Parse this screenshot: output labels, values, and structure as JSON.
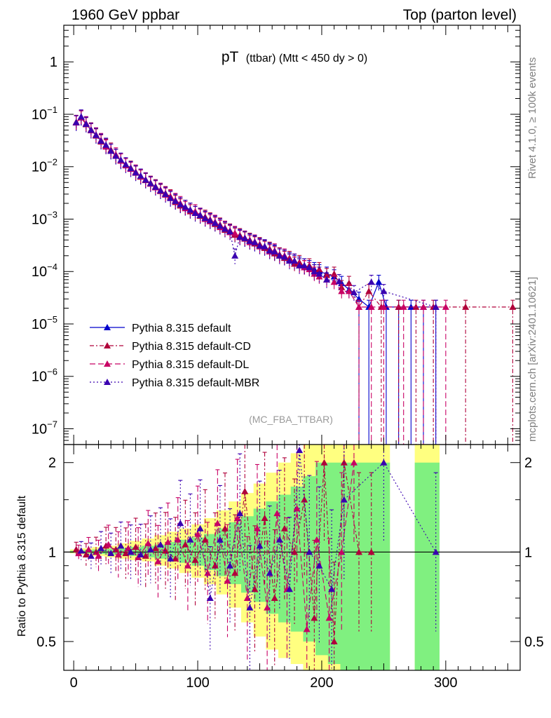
{
  "header": {
    "left": "1960 GeV ppbar",
    "right": "Top (parton level)"
  },
  "side_labels": {
    "rivet": "Rivet 4.1.0, ≥ 100k events",
    "mcplots": "mcplots.cern.ch [arXiv:2401.10621]"
  },
  "watermark": "(MC_FBA_TTBAR)",
  "chart_data": [
    {
      "type": "line",
      "panel": "main",
      "title_main": "pT",
      "title_sub": "(ttbar) (Mtt < 450 dy > 0)",
      "xlabel": "",
      "ylabel": "",
      "xlim": [
        -8,
        360
      ],
      "ylim": [
        5e-08,
        5
      ],
      "yscale": "log",
      "y_tick_labels": [
        "1",
        "10",
        "10",
        "10",
        "10",
        "10",
        "10",
        "10"
      ],
      "y_tick_exponents": [
        "",
        "−1",
        "−2",
        "−3",
        "−4",
        "−5",
        "−6",
        "−7"
      ],
      "x_tick_labels": [
        "0",
        "100",
        "200",
        "300"
      ],
      "legend": [
        "Pythia 8.315 default",
        "Pythia 8.315 default-CD",
        "Pythia 8.315 default-DL",
        "Pythia 8.315 default-MBR"
      ],
      "series": [
        {
          "name": "Pythia 8.315 default",
          "color": "#0000cc",
          "dash": "",
          "x": [
            2,
            6,
            10,
            14,
            18,
            22,
            26,
            30,
            34,
            38,
            42,
            46,
            50,
            54,
            58,
            62,
            66,
            70,
            74,
            78,
            82,
            86,
            90,
            94,
            98,
            102,
            106,
            110,
            114,
            118,
            122,
            126,
            130,
            134,
            138,
            142,
            146,
            150,
            154,
            158,
            162,
            166,
            170,
            174,
            178,
            182,
            186,
            190,
            194,
            198,
            204,
            210,
            216,
            222,
            230,
            238,
            246,
            252,
            262,
            272,
            282,
            292
          ],
          "y": [
            0.07,
            0.088,
            0.066,
            0.05,
            0.04,
            0.031,
            0.025,
            0.02,
            0.016,
            0.013,
            0.011,
            0.0092,
            0.0078,
            0.0066,
            0.0056,
            0.0048,
            0.0041,
            0.0035,
            0.003,
            0.0026,
            0.0022,
            0.0019,
            0.0017,
            0.0015,
            0.0013,
            0.0012,
            0.00105,
            0.00095,
            0.00085,
            0.00075,
            0.00066,
            0.00059,
            0.00052,
            0.00047,
            0.00043,
            0.00039,
            0.00035,
            0.00032,
            0.00029,
            0.00026,
            0.00023,
            0.00021,
            0.00019,
            0.00017,
            0.00015,
            0.00014,
            0.00013,
            0.00012,
            0.00011,
            0.0001,
            9e-05,
            8e-05,
            6e-05,
            4.5e-05,
            3e-05,
            2.1e-05,
            6.3e-05,
            2.1e-05,
            2.1e-05,
            2.1e-05,
            2.1e-05,
            2.1e-05
          ]
        },
        {
          "name": "Pythia 8.315 default-CD",
          "color": "#b0003a",
          "dash": "6,3,2,3",
          "x": [
            2,
            6,
            10,
            14,
            18,
            22,
            26,
            30,
            34,
            38,
            42,
            46,
            50,
            54,
            58,
            62,
            66,
            70,
            74,
            78,
            82,
            86,
            90,
            94,
            98,
            102,
            106,
            110,
            114,
            118,
            122,
            126,
            130,
            134,
            138,
            142,
            146,
            150,
            154,
            158,
            162,
            166,
            170,
            174,
            178,
            182,
            186,
            190,
            194,
            198,
            204,
            210,
            216,
            222,
            230,
            238,
            248,
            262,
            276,
            290,
            316,
            354
          ],
          "y": [
            0.071,
            0.086,
            0.064,
            0.051,
            0.039,
            0.03,
            0.025,
            0.021,
            0.016,
            0.013,
            0.011,
            0.0095,
            0.0076,
            0.0064,
            0.0055,
            0.0049,
            0.0042,
            0.0034,
            0.0031,
            0.0027,
            0.0021,
            0.0018,
            0.0017,
            0.0014,
            0.0013,
            0.00115,
            0.0011,
            0.00098,
            0.0008,
            0.00078,
            0.00062,
            0.0006,
            0.0005,
            0.00049,
            0.00042,
            0.0004,
            0.00034,
            0.00033,
            0.00028,
            0.00027,
            0.00022,
            0.00021,
            0.00018,
            0.00018,
            0.00014,
            0.00015,
            0.00012,
            0.00013,
            0.0001,
            0.00011,
            8.5e-05,
            9e-05,
            5e-05,
            6e-05,
            2.1e-05,
            4.2e-05,
            2.1e-05,
            2.1e-05,
            2.1e-05,
            2.1e-05,
            2.1e-05,
            2.1e-05
          ]
        },
        {
          "name": "Pythia 8.315 default-DL",
          "color": "#c80064",
          "dash": "8,4",
          "x": [
            2,
            6,
            10,
            14,
            18,
            22,
            26,
            30,
            34,
            38,
            42,
            46,
            50,
            54,
            58,
            62,
            66,
            70,
            74,
            78,
            82,
            86,
            90,
            94,
            98,
            102,
            106,
            110,
            114,
            118,
            122,
            126,
            130,
            134,
            138,
            142,
            146,
            150,
            154,
            158,
            162,
            166,
            170,
            174,
            178,
            182,
            186,
            190,
            194,
            198,
            204,
            210,
            216,
            222,
            230,
            240,
            250,
            266,
            282,
            300
          ],
          "y": [
            0.069,
            0.087,
            0.067,
            0.049,
            0.041,
            0.032,
            0.024,
            0.02,
            0.017,
            0.013,
            0.0105,
            0.009,
            0.008,
            0.0065,
            0.0057,
            0.0047,
            0.004,
            0.0036,
            0.0029,
            0.0026,
            0.0023,
            0.002,
            0.0016,
            0.0015,
            0.0014,
            0.0012,
            0.001,
            0.0009,
            0.00088,
            0.0007,
            0.00068,
            0.00056,
            0.00054,
            0.00045,
            0.00044,
            0.00036,
            0.00037,
            0.0003,
            0.0003,
            0.00024,
            0.00025,
            0.0002,
            0.0002,
            0.00016,
            0.00016,
            0.00013,
            0.00012,
            0.00011,
            9e-05,
            8e-05,
            7e-05,
            6.3e-05,
            4.2e-05,
            4.2e-05,
            2.1e-05,
            2.1e-05,
            2.1e-05,
            2.1e-05,
            2.1e-05,
            2.1e-05
          ]
        },
        {
          "name": "Pythia 8.315 default-MBR",
          "color": "#3a00b0",
          "dash": "2,3",
          "x": [
            2,
            6,
            10,
            14,
            18,
            22,
            26,
            30,
            34,
            38,
            42,
            46,
            50,
            54,
            58,
            62,
            66,
            70,
            74,
            78,
            82,
            86,
            90,
            94,
            98,
            102,
            106,
            110,
            114,
            118,
            122,
            126,
            130,
            134,
            138,
            142,
            146,
            150,
            154,
            158,
            162,
            166,
            170,
            174,
            178,
            182,
            186,
            190,
            194,
            198,
            204,
            214,
            226,
            240,
            250,
            292
          ],
          "y": [
            0.07,
            0.09,
            0.065,
            0.05,
            0.04,
            0.031,
            0.026,
            0.02,
            0.016,
            0.0135,
            0.011,
            0.0093,
            0.0077,
            0.0067,
            0.0056,
            0.0048,
            0.0041,
            0.0035,
            0.003,
            0.0025,
            0.0022,
            0.0019,
            0.0017,
            0.0015,
            0.0013,
            0.00118,
            0.00104,
            0.00094,
            0.00084,
            0.00074,
            0.00065,
            0.00058,
            0.0002,
            0.00046,
            0.00043,
            0.00038,
            0.00036,
            0.00031,
            0.0003,
            0.00025,
            0.00024,
            0.0002,
            0.00019,
            0.00016,
            0.00016,
            0.00013,
            0.00013,
            0.00012,
            0.0001,
            9e-05,
            7e-05,
            6.5e-05,
            4e-05,
            6.3e-05,
            4.2e-05,
            2.1e-05
          ]
        }
      ]
    },
    {
      "type": "line",
      "panel": "ratio",
      "xlabel": "",
      "ylabel": "Ratio to Pythia 8.315 default",
      "xlim": [
        -8,
        360
      ],
      "ylim": [
        0.4,
        2.3
      ],
      "yscale": "log",
      "y_tick_labels": [
        "0.5",
        "1",
        "2"
      ],
      "x_tick_labels": [
        "0",
        "100",
        "200",
        "300"
      ],
      "band_x": [
        2,
        10,
        20,
        30,
        40,
        50,
        60,
        70,
        80,
        90,
        100,
        110,
        120,
        130,
        140,
        150,
        160,
        170,
        180,
        190,
        200,
        210,
        220,
        230,
        240,
        250,
        280,
        290
      ],
      "band_yellow_lo": [
        0.99,
        0.98,
        0.97,
        0.96,
        0.95,
        0.94,
        0.93,
        0.9,
        0.88,
        0.85,
        0.82,
        0.78,
        0.72,
        0.65,
        0.58,
        0.52,
        0.47,
        0.44,
        0.42,
        0.4,
        0.4,
        0.4,
        0.4,
        0.4,
        0.4,
        0.4,
        0.4,
        0.4
      ],
      "band_yellow_hi": [
        1.02,
        1.03,
        1.04,
        1.05,
        1.07,
        1.09,
        1.11,
        1.14,
        1.17,
        1.2,
        1.24,
        1.3,
        1.38,
        1.48,
        1.58,
        1.7,
        1.85,
        2.0,
        2.15,
        2.3,
        2.3,
        2.3,
        2.3,
        2.3,
        2.3,
        2.3,
        2.3,
        2.3
      ],
      "band_green_lo": [
        0.995,
        0.99,
        0.985,
        0.98,
        0.975,
        0.97,
        0.96,
        0.95,
        0.94,
        0.92,
        0.9,
        0.87,
        0.83,
        0.78,
        0.73,
        0.68,
        0.62,
        0.58,
        0.54,
        0.5,
        0.45,
        0.42,
        0.4,
        0.4,
        0.4,
        0.4,
        0.4,
        0.4
      ],
      "band_green_hi": [
        1.01,
        1.015,
        1.02,
        1.025,
        1.03,
        1.04,
        1.05,
        1.06,
        1.08,
        1.1,
        1.12,
        1.15,
        1.2,
        1.26,
        1.32,
        1.4,
        1.48,
        1.56,
        1.66,
        1.8,
        2.0,
        2.0,
        2.0,
        2.0,
        2.0,
        2.0,
        2.0,
        2.0
      ],
      "series": [
        {
          "name": "Pythia 8.315 default-CD",
          "color": "#b0003a",
          "dash": "6,3,2,3",
          "x": [
            2,
            10,
            18,
            26,
            34,
            42,
            50,
            58,
            66,
            74,
            82,
            90,
            98,
            106,
            114,
            122,
            130,
            138,
            146,
            154,
            162,
            170,
            178,
            186,
            194,
            202,
            210,
            218,
            230,
            240
          ],
          "y": [
            1.02,
            0.98,
            1.0,
            1.05,
            1.02,
            0.99,
            1.04,
            0.97,
            1.03,
            1.01,
            0.95,
            1.06,
            0.94,
            1.1,
            0.9,
            1.2,
            0.85,
            1.6,
            0.75,
            1.3,
            0.7,
            1.2,
            1.0,
            1.5,
            0.6,
            2.0,
            0.5,
            2.0,
            1.0,
            1.0
          ]
        },
        {
          "name": "Pythia 8.315 default-DL",
          "color": "#c80064",
          "dash": "8,4",
          "x": [
            4,
            12,
            20,
            28,
            36,
            44,
            52,
            60,
            68,
            76,
            84,
            92,
            100,
            108,
            116,
            124,
            132,
            140,
            148,
            156,
            164,
            172,
            180,
            188,
            196,
            206,
            216,
            226
          ],
          "y": [
            0.99,
            1.02,
            0.97,
            1.06,
            0.98,
            1.03,
            0.96,
            1.07,
            0.93,
            1.08,
            1.1,
            0.9,
            1.15,
            0.85,
            1.25,
            0.8,
            1.3,
            0.7,
            1.2,
            0.65,
            1.35,
            0.75,
            1.4,
            0.55,
            1.1,
            0.6,
            1.0,
            2.0
          ]
        },
        {
          "name": "Pythia 8.315 default-MBR",
          "color": "#3a00b0",
          "dash": "2,3",
          "x": [
            6,
            14,
            22,
            30,
            38,
            46,
            54,
            62,
            70,
            78,
            86,
            94,
            102,
            110,
            118,
            126,
            134,
            142,
            150,
            158,
            166,
            174,
            182,
            190,
            198,
            208,
            218,
            250,
            292
          ],
          "y": [
            1.01,
            0.97,
            1.03,
            0.99,
            1.05,
            1.0,
            0.98,
            1.02,
            1.06,
            0.95,
            1.25,
            1.1,
            1.2,
            0.7,
            1.1,
            0.9,
            1.35,
            0.65,
            1.05,
            0.85,
            1.1,
            0.75,
            2.2,
            1.0,
            0.9,
            0.75,
            1.5,
            2.0,
            1.0
          ]
        }
      ]
    }
  ]
}
